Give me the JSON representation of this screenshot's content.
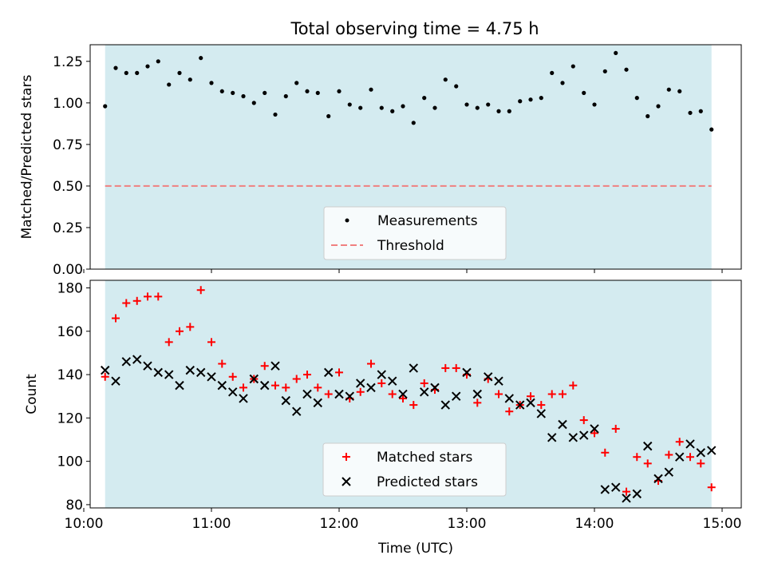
{
  "figure": {
    "title": "Total observing time = 4.75 h"
  },
  "colors": {
    "observing_window": "#d4ebf0",
    "measurements": "#000000",
    "threshold": "#f08080",
    "matched": "#ff0000",
    "predicted": "#000000"
  },
  "chart_data": [
    {
      "type": "scatter",
      "panel": "top",
      "title": "Total observing time = 4.75 h",
      "xlabel": "",
      "ylabel": "Matched/Predicted stars",
      "xlim": [
        10.05,
        15.15
      ],
      "ylim": [
        0.0,
        1.35
      ],
      "yticks": [
        0.0,
        0.25,
        0.5,
        0.75,
        1.0,
        1.25
      ],
      "ytick_labels": [
        "0.00",
        "0.25",
        "0.50",
        "0.75",
        "1.00",
        "1.25"
      ],
      "xticks": [
        10,
        11,
        12,
        13,
        14,
        15
      ],
      "shaded_span": [
        10.167,
        14.917
      ],
      "threshold": 0.5,
      "legend_position": "lower center",
      "legend": [
        "Measurements",
        "Threshold"
      ],
      "series": [
        {
          "name": "Measurements",
          "marker": "dot",
          "x": [
            10.167,
            10.25,
            10.333,
            10.417,
            10.5,
            10.583,
            10.667,
            10.75,
            10.833,
            10.917,
            11.0,
            11.083,
            11.167,
            11.25,
            11.333,
            11.417,
            11.5,
            11.583,
            11.667,
            11.75,
            11.833,
            11.917,
            12.0,
            12.083,
            12.167,
            12.25,
            12.333,
            12.417,
            12.5,
            12.583,
            12.667,
            12.75,
            12.833,
            12.917,
            13.0,
            13.083,
            13.167,
            13.25,
            13.333,
            13.417,
            13.5,
            13.583,
            13.667,
            13.75,
            13.833,
            13.917,
            14.0,
            14.083,
            14.167,
            14.25,
            14.333,
            14.417,
            14.5,
            14.583,
            14.667,
            14.75,
            14.833,
            14.917
          ],
          "values": [
            0.98,
            1.21,
            1.18,
            1.18,
            1.22,
            1.25,
            1.11,
            1.18,
            1.14,
            1.27,
            1.12,
            1.07,
            1.06,
            1.04,
            1.0,
            1.06,
            0.93,
            1.04,
            1.12,
            1.07,
            1.06,
            0.92,
            1.07,
            0.99,
            0.97,
            1.08,
            0.97,
            0.95,
            0.98,
            0.88,
            1.03,
            0.97,
            1.14,
            1.1,
            0.99,
            0.97,
            0.99,
            0.95,
            0.95,
            1.01,
            1.02,
            1.03,
            1.18,
            1.12,
            1.22,
            1.06,
            0.99,
            1.19,
            1.3,
            1.2,
            1.03,
            0.92,
            0.98,
            1.08,
            1.07,
            0.94,
            0.95,
            0.84
          ]
        }
      ]
    },
    {
      "type": "scatter",
      "panel": "bottom",
      "xlabel": "Time (UTC)",
      "ylabel": "Count",
      "xlim": [
        10.05,
        15.15
      ],
      "ylim": [
        78.5,
        183.5
      ],
      "yticks": [
        80,
        100,
        120,
        140,
        160,
        180
      ],
      "ytick_labels": [
        "80",
        "100",
        "120",
        "140",
        "160",
        "180"
      ],
      "xticks": [
        10,
        11,
        12,
        13,
        14,
        15
      ],
      "xtick_labels": [
        "10:00",
        "11:00",
        "12:00",
        "13:00",
        "14:00",
        "15:00"
      ],
      "shaded_span": [
        10.167,
        14.917
      ],
      "legend_position": "lower center",
      "legend": [
        "Matched stars",
        "Predicted stars"
      ],
      "series": [
        {
          "name": "Matched stars",
          "marker": "plus",
          "x": [
            10.167,
            10.25,
            10.333,
            10.417,
            10.5,
            10.583,
            10.667,
            10.75,
            10.833,
            10.917,
            11.0,
            11.083,
            11.167,
            11.25,
            11.333,
            11.417,
            11.5,
            11.583,
            11.667,
            11.75,
            11.833,
            11.917,
            12.0,
            12.083,
            12.167,
            12.25,
            12.333,
            12.417,
            12.5,
            12.583,
            12.667,
            12.75,
            12.833,
            12.917,
            13.0,
            13.083,
            13.167,
            13.25,
            13.333,
            13.417,
            13.5,
            13.583,
            13.667,
            13.75,
            13.833,
            13.917,
            14.0,
            14.083,
            14.167,
            14.25,
            14.333,
            14.417,
            14.5,
            14.583,
            14.667,
            14.75,
            14.833,
            14.917
          ],
          "values": [
            139,
            166,
            173,
            174,
            176,
            176,
            155,
            160,
            162,
            179,
            155,
            145,
            139,
            134,
            138,
            144,
            135,
            134,
            138,
            140,
            134,
            131,
            141,
            129,
            132,
            145,
            136,
            131,
            129,
            126,
            136,
            133,
            143,
            143,
            140,
            127,
            138,
            131,
            123,
            126,
            130,
            126,
            131,
            131,
            135,
            119,
            113,
            104,
            115,
            86,
            102,
            99,
            91,
            103,
            109,
            102,
            99,
            88
          ]
        },
        {
          "name": "Predicted stars",
          "marker": "x",
          "x": [
            10.167,
            10.25,
            10.333,
            10.417,
            10.5,
            10.583,
            10.667,
            10.75,
            10.833,
            10.917,
            11.0,
            11.083,
            11.167,
            11.25,
            11.333,
            11.417,
            11.5,
            11.583,
            11.667,
            11.75,
            11.833,
            11.917,
            12.0,
            12.083,
            12.167,
            12.25,
            12.333,
            12.417,
            12.5,
            12.583,
            12.667,
            12.75,
            12.833,
            12.917,
            13.0,
            13.083,
            13.167,
            13.25,
            13.333,
            13.417,
            13.5,
            13.583,
            13.667,
            13.75,
            13.833,
            13.917,
            14.0,
            14.083,
            14.167,
            14.25,
            14.333,
            14.417,
            14.5,
            14.583,
            14.667,
            14.75,
            14.833,
            14.917
          ],
          "values": [
            142,
            137,
            146,
            147,
            144,
            141,
            140,
            135,
            142,
            141,
            139,
            135,
            132,
            129,
            138,
            135,
            144,
            128,
            123,
            131,
            127,
            141,
            131,
            130,
            136,
            134,
            140,
            137,
            131,
            143,
            132,
            134,
            126,
            130,
            141,
            131,
            139,
            137,
            129,
            126,
            127,
            122,
            111,
            117,
            111,
            112,
            115,
            87,
            88,
            83,
            85,
            107,
            92,
            95,
            102,
            108,
            104,
            105
          ]
        }
      ]
    }
  ]
}
